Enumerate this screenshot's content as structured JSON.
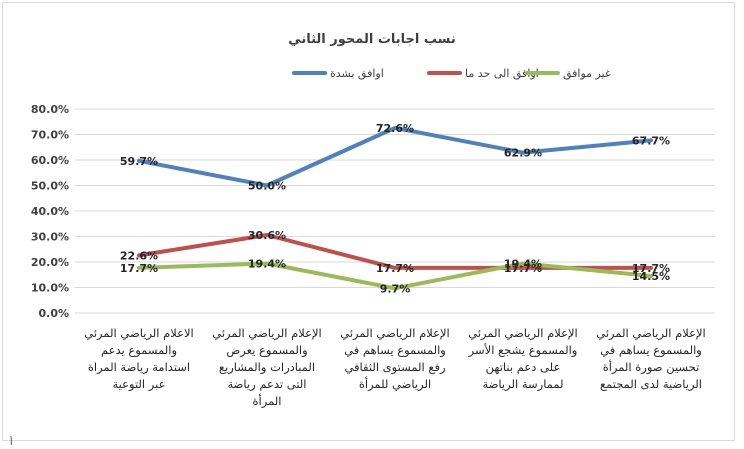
{
  "chart_data": {
    "type": "line",
    "title": "نسب اجابات المحور الثاني",
    "xlabel": "",
    "ylabel": "",
    "ylim": [
      0,
      80
    ],
    "y_ticks": [
      "0.0%",
      "10.0%",
      "20.0%",
      "30.0%",
      "40.0%",
      "50.0%",
      "60.0%",
      "70.0%",
      "80.0%"
    ],
    "grid": true,
    "legend_position": "top",
    "categories": [
      [
        "الإعلام الرياضي المرئي",
        "والمسموع يساهم في",
        "تحسين صورة المرأة",
        "الرياضية لدى المجتمع"
      ],
      [
        "الإعلام الرياضي المرئي",
        "والمسموع يشجع الأسر",
        "على دعم بناتهن",
        "لممارسة الرياضة"
      ],
      [
        "الإعلام الرياضي المرئي",
        "والمسموع يساهم في",
        "رفع المستوى الثقافي",
        "الرياضي للمرأة"
      ],
      [
        "الإعلام الرياضي المرئي",
        "والمسموع يعرض",
        "المبادرات والمشاريع",
        "التى تدعم رياضة",
        "المرأة"
      ],
      [
        "الاعلام الرياضي المرئي",
        "والمسموع يدعم",
        "استدامة رياضة المراة",
        "عبر التوعية"
      ]
    ],
    "series": [
      {
        "name": "اوافق بشدة",
        "color": "#4f81bd",
        "values": [
          67.7,
          62.9,
          72.6,
          50.0,
          59.7
        ],
        "labels": [
          "67.7%",
          "62.9%",
          "72.6%",
          "50.0%",
          "59.7%"
        ]
      },
      {
        "name": "اوافق الى حد ما",
        "color": "#c0504d",
        "values": [
          17.7,
          17.7,
          17.7,
          30.6,
          22.6
        ],
        "labels": [
          "17.7%",
          "17.7%",
          "17.7%",
          "30.6%",
          "22.6%"
        ]
      },
      {
        "name": "غير موافق",
        "color": "#9bbb59",
        "values": [
          14.5,
          19.4,
          9.7,
          19.4,
          17.7
        ],
        "labels": [
          "14.5%",
          "19.4%",
          "9.7%",
          "19.4%",
          "17.7%"
        ]
      }
    ]
  },
  "footnote": "أ"
}
